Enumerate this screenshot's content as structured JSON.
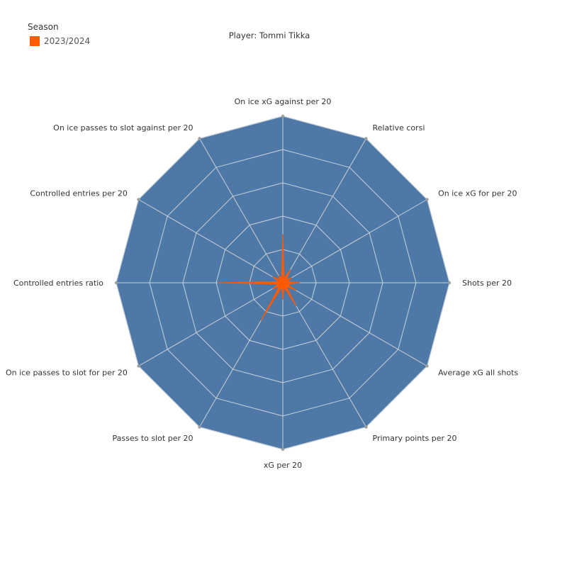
{
  "legend": {
    "title": "Season",
    "items": [
      {
        "label": "2023/2024",
        "color": "#ff5a00"
      }
    ]
  },
  "title": "Player: Tommi Tikka",
  "colors": {
    "background_polygon": "#4e79a7",
    "grid": "#c8d0d8",
    "series": "#ff5a00",
    "vertex_dot": "#9e9e9e"
  },
  "chart_data": {
    "type": "radar",
    "title": "Player: Tommi Tikka",
    "axes": [
      "On ice xG against per 20",
      "Relative corsi",
      "On ice xG for per 20",
      "Shots per 20",
      "Average xG all shots",
      "Primary points per 20",
      "xG per 20",
      "Passes to slot per 20",
      "On ice passes to slot for per 20",
      "Controlled entries ratio",
      "Controlled entries per 20",
      "On ice passes to slot against per 20"
    ],
    "range": [
      0,
      1
    ],
    "rings": 5,
    "grid": true,
    "legend_position": "top-left",
    "series": [
      {
        "name": "2023/2024",
        "values": [
          0.29,
          0.09,
          0.06,
          0.1,
          0.09,
          0.16,
          0.1,
          0.26,
          0.07,
          0.39,
          0.07,
          0.05
        ]
      }
    ]
  }
}
